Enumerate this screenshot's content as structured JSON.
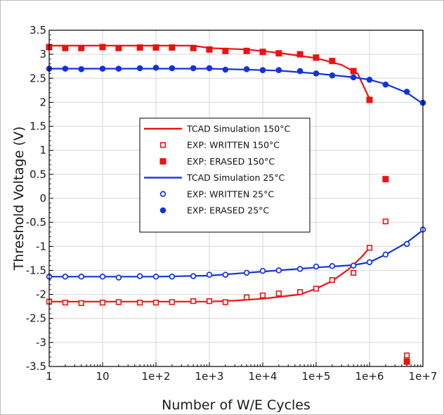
{
  "chart_data": {
    "type": "scatter",
    "xlabel": "Number of W/E Cycles",
    "ylabel": "Threshold Voltage (V)",
    "xscale": "log",
    "xlim": [
      1,
      10000000
    ],
    "ylim": [
      -3.5,
      3.5
    ],
    "grid": true,
    "legend_position": "center-left",
    "x_ticks": [
      {
        "value": 1,
        "label": "1"
      },
      {
        "value": 10,
        "label": "10"
      },
      {
        "value": 100,
        "label": "1e+2"
      },
      {
        "value": 1000,
        "label": "1e+3"
      },
      {
        "value": 10000,
        "label": "1e+4"
      },
      {
        "value": 100000,
        "label": "1e+5"
      },
      {
        "value": 1000000,
        "label": "1e+6"
      },
      {
        "value": 10000000,
        "label": "1e+7"
      }
    ],
    "y_ticks": [
      {
        "value": 3.5,
        "label": "3.5"
      },
      {
        "value": 3,
        "label": "3"
      },
      {
        "value": 2.5,
        "label": "2.5"
      },
      {
        "value": 2,
        "label": "2"
      },
      {
        "value": 1.5,
        "label": "1.5"
      },
      {
        "value": 1,
        "label": "1"
      },
      {
        "value": 0.5,
        "label": "0.5"
      },
      {
        "value": 0,
        "label": "0"
      },
      {
        "value": -0.5,
        "label": "-0.5"
      },
      {
        "value": -1,
        "label": "-1"
      },
      {
        "value": -1.5,
        "label": "-1.5"
      },
      {
        "value": -2,
        "label": "-2"
      },
      {
        "value": -2.5,
        "label": "-2.5"
      },
      {
        "value": -3,
        "label": "-3"
      },
      {
        "value": -3.5,
        "label": "-3.5"
      }
    ],
    "series": [
      {
        "name": "TCAD Simulation 150°C",
        "kind": "line",
        "color": "#ee1111",
        "segments": [
          {
            "x": [
              1,
              500,
              1000,
              5000,
              20000,
              100000,
              300000,
              600000,
              1000000
            ],
            "y": [
              3.18,
              3.18,
              3.13,
              3.1,
              3.03,
              2.92,
              2.78,
              2.6,
              2.07
            ]
          },
          {
            "x": [
              1,
              100,
              1000,
              3000,
              10000,
              50000,
              100000,
              200000,
              400000,
              700000,
              1000000
            ],
            "y": [
              -2.15,
              -2.15,
              -2.15,
              -2.13,
              -2.09,
              -2.0,
              -1.88,
              -1.72,
              -1.48,
              -1.23,
              -1.03
            ]
          }
        ]
      },
      {
        "name": "EXP: WRITTEN 150°C",
        "kind": "scatter",
        "marker": "square-open",
        "color": "#ee1111",
        "x": [
          1,
          2,
          4,
          10,
          20,
          50,
          100,
          200,
          500,
          1000,
          2000,
          5000,
          10000,
          20000,
          50000,
          100000,
          200000,
          500000,
          1000000,
          2000000,
          5000000
        ],
        "y": [
          -2.15,
          -2.17,
          -2.18,
          -2.17,
          -2.16,
          -2.17,
          -2.17,
          -2.16,
          -2.14,
          -2.14,
          -2.16,
          -2.06,
          -2.02,
          -1.98,
          -1.95,
          -1.88,
          -1.7,
          -1.55,
          -1.03,
          -0.48,
          -3.27
        ]
      },
      {
        "name": "EXP: ERASED 150°C",
        "kind": "scatter",
        "marker": "square-filled",
        "color": "#ee1111",
        "x": [
          1,
          2,
          4,
          10,
          20,
          50,
          100,
          200,
          500,
          1000,
          2000,
          5000,
          10000,
          20000,
          50000,
          100000,
          200000,
          500000,
          1000000,
          2000000,
          5000000
        ],
        "y": [
          3.15,
          3.13,
          3.13,
          3.15,
          3.13,
          3.14,
          3.14,
          3.14,
          3.13,
          3.1,
          3.07,
          3.07,
          3.05,
          3.02,
          3.0,
          2.93,
          2.86,
          2.65,
          2.05,
          0.4,
          -3.4
        ]
      },
      {
        "name": "TCAD Simulation 25°C",
        "kind": "line",
        "color": "#1133dd",
        "segments": [
          {
            "x": [
              1,
              1000,
              5000,
              20000,
              100000,
              500000,
              1000000,
              2000000,
              5000000,
              10000000
            ],
            "y": [
              2.7,
              2.7,
              2.68,
              2.66,
              2.6,
              2.52,
              2.47,
              2.38,
              2.2,
              1.97
            ]
          },
          {
            "x": [
              1,
              100,
              1000,
              5000,
              20000,
              100000,
              500000,
              1000000,
              2000000,
              5000000,
              10000000
            ],
            "y": [
              -1.63,
              -1.63,
              -1.61,
              -1.55,
              -1.5,
              -1.44,
              -1.39,
              -1.33,
              -1.17,
              -0.92,
              -0.66
            ]
          }
        ]
      },
      {
        "name": "EXP: WRITTEN 25°C",
        "kind": "scatter",
        "marker": "circle-open",
        "color": "#1133dd",
        "x": [
          1,
          2,
          4,
          10,
          20,
          50,
          100,
          200,
          500,
          1000,
          2000,
          5000,
          10000,
          20000,
          50000,
          100000,
          200000,
          500000,
          1000000,
          2000000,
          5000000,
          10000000
        ],
        "y": [
          -1.63,
          -1.63,
          -1.63,
          -1.63,
          -1.65,
          -1.62,
          -1.63,
          -1.63,
          -1.62,
          -1.59,
          -1.59,
          -1.55,
          -1.51,
          -1.5,
          -1.47,
          -1.42,
          -1.41,
          -1.4,
          -1.33,
          -1.17,
          -0.95,
          -0.65
        ]
      },
      {
        "name": "EXP: ERASED 25°C",
        "kind": "scatter",
        "marker": "circle-filled",
        "color": "#1133dd",
        "x": [
          1,
          2,
          4,
          10,
          20,
          50,
          100,
          200,
          500,
          1000,
          2000,
          5000,
          10000,
          20000,
          50000,
          100000,
          200000,
          500000,
          1000000,
          2000000,
          5000000,
          10000000
        ],
        "y": [
          2.7,
          2.7,
          2.69,
          2.7,
          2.7,
          2.71,
          2.72,
          2.71,
          2.71,
          2.71,
          2.68,
          2.69,
          2.67,
          2.67,
          2.65,
          2.6,
          2.56,
          2.52,
          2.47,
          2.37,
          2.22,
          1.99
        ]
      }
    ]
  }
}
